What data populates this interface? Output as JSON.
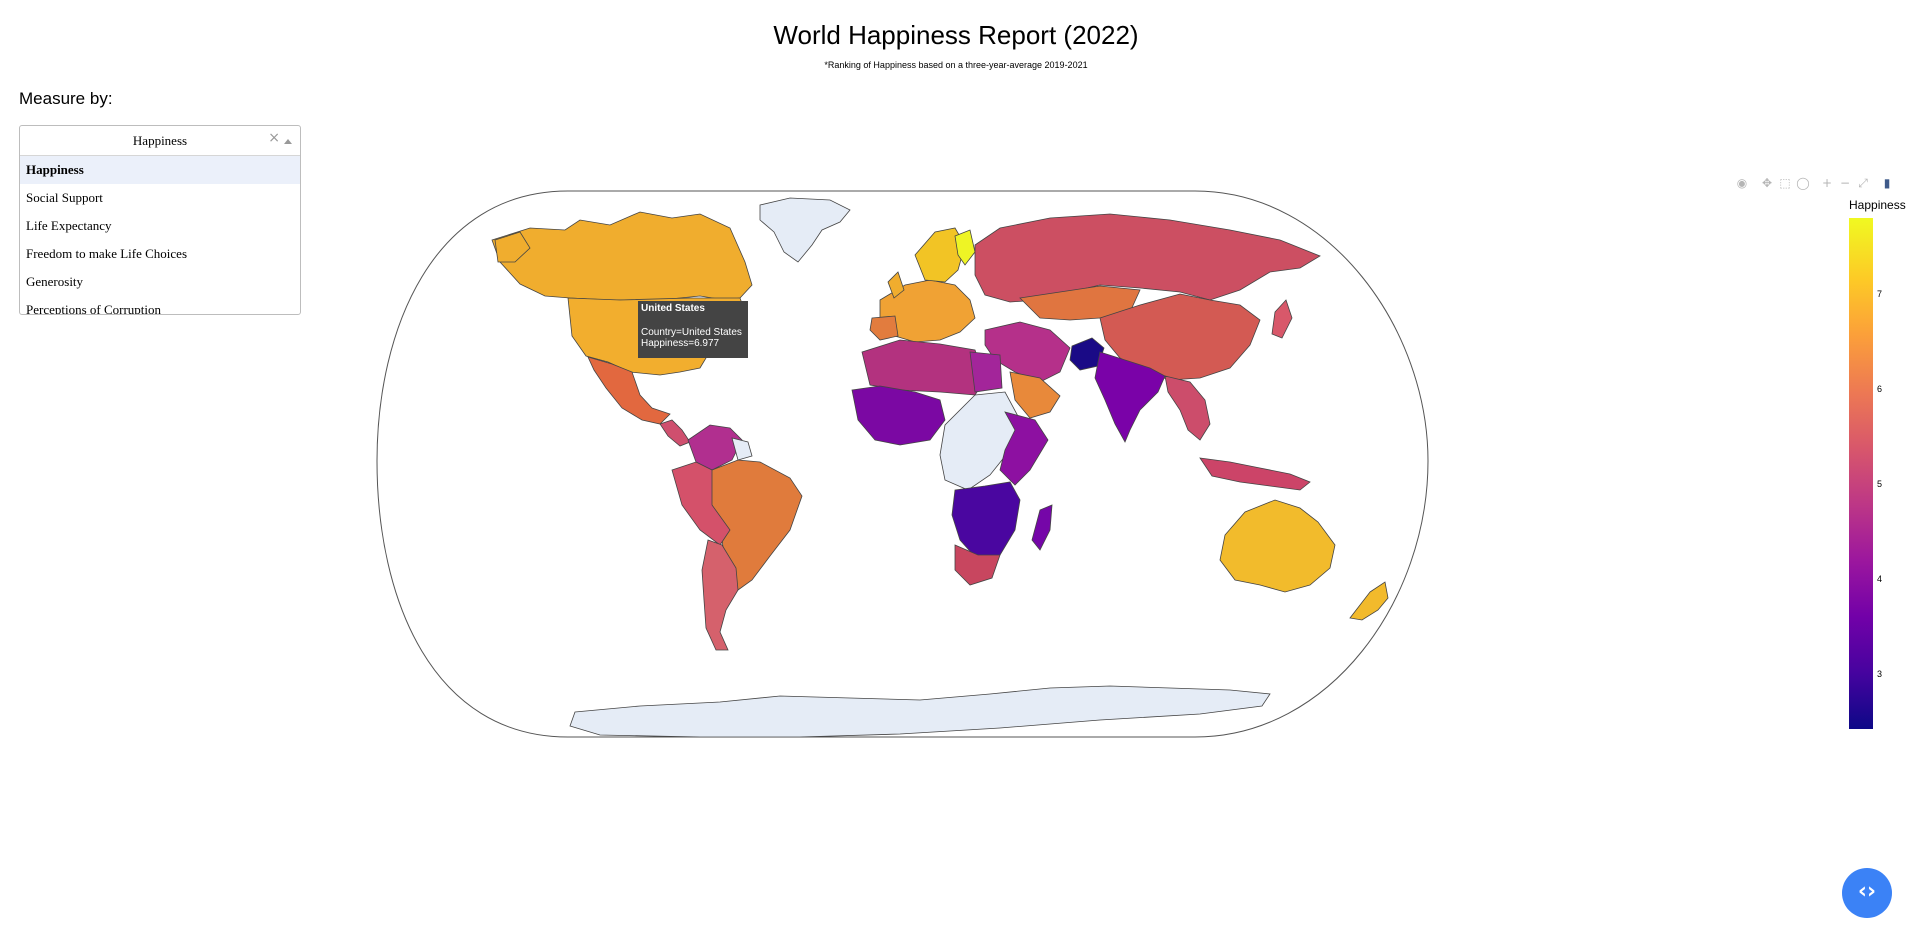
{
  "title": "World Happiness Report (2022)",
  "subtitle": "*Ranking of Happiness based on a three-year-average 2019-2021",
  "measure_label": "Measure by:",
  "dropdown": {
    "value": "Happiness",
    "clear_glyph": "×",
    "options": [
      "Happiness",
      "Social Support",
      "Life Expectancy",
      "Freedom to make Life Choices",
      "Generosity",
      "Perceptions of Corruption"
    ]
  },
  "modebar": {
    "icons": [
      "camera-icon",
      "pan-icon",
      "box-select-icon",
      "lasso-icon",
      "zoom-in-icon",
      "zoom-out-icon",
      "reset-icon",
      "plotly-logo-icon"
    ],
    "glyphs": [
      "◉",
      "✥",
      "⬚",
      "◯",
      "+",
      "−",
      "⤢",
      "▮"
    ]
  },
  "map": {
    "projection": "natural earth",
    "colorscale": "Plasma",
    "no_data_color": "#e5ecf6",
    "country_border_color": "#444444",
    "frame_color": "#555555"
  },
  "colorbar": {
    "title": "Happiness",
    "ticks": [
      "7",
      "6",
      "5",
      "4",
      "3"
    ],
    "range": [
      2.4,
      7.8
    ]
  },
  "tooltip": {
    "header": "United States",
    "line1": "Country=United States",
    "line2": "Happiness=6.977"
  },
  "fab_glyph": "‹›",
  "chart_data": {
    "type": "choropleth",
    "title": "World Happiness Report (2022)",
    "color_variable": "Happiness",
    "colorscale": "Plasma",
    "range": [
      2.4,
      7.8
    ],
    "highlighted": {
      "country": "United States",
      "Happiness": 6.977
    }
  }
}
